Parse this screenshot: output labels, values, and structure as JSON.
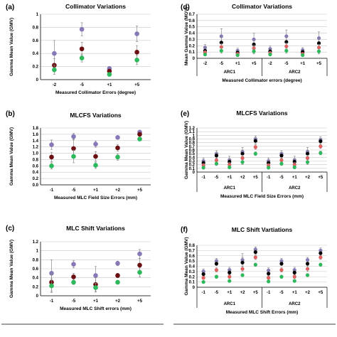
{
  "colors": {
    "purple": "#8878b8",
    "darkred": "#6b0f12",
    "green": "#2eb85c",
    "black": "#000000",
    "red": "#e06060",
    "gridline": "#c8c8c8",
    "errorbar": "#8a8a8a"
  },
  "chart_data": [
    {
      "id": "a",
      "type": "scatter",
      "panel_label": "(a)",
      "title": "Collimator Variations",
      "xlabel": "Measured Collimator Errors (degree)",
      "ylabel": "Gamma Mean Value (GMV)",
      "ylim": [
        0,
        1
      ],
      "yticks": [
        "0",
        "0.2",
        "0.4",
        "0.6",
        "0.8",
        "1"
      ],
      "categories": [
        "-2",
        "-5",
        "+1",
        "+5"
      ],
      "series": [
        {
          "color": "purple",
          "values": [
            0.4,
            0.77,
            0.17,
            0.7
          ],
          "err": [
            0.2,
            0.1,
            0.03,
            0.12
          ]
        },
        {
          "color": "darkred",
          "values": [
            0.22,
            0.47,
            0.13,
            0.42
          ],
          "err": [
            0.1,
            0.1,
            0.03,
            0.1
          ]
        },
        {
          "color": "green",
          "values": [
            0.15,
            0.33,
            0.08,
            0.3
          ],
          "err": [
            0.07,
            0.06,
            0.02,
            0.07
          ]
        }
      ]
    },
    {
      "id": "b",
      "type": "scatter",
      "panel_label": "(b)",
      "title": "MLCFS Variations",
      "xlabel": "Measured MLC Field Size Errors (mm)",
      "ylabel": "Gamma Mean Value (GMV)",
      "ylim": [
        0,
        1.8
      ],
      "yticks": [
        "0.0",
        "0.2",
        "0.4",
        "0.6",
        "0.8",
        "1.0",
        "1.2",
        "1.4",
        "1.6",
        "1.8"
      ],
      "categories": [
        "-1",
        "-5",
        "+1",
        "+2",
        "+5"
      ],
      "series": [
        {
          "color": "purple",
          "values": [
            1.27,
            1.53,
            1.29,
            1.5,
            1.67
          ],
          "err": [
            0.15,
            0.1,
            0.1,
            0.05,
            0.05
          ]
        },
        {
          "color": "darkred",
          "values": [
            0.88,
            1.15,
            0.9,
            1.17,
            1.6
          ],
          "err": [
            0.15,
            0.3,
            0.15,
            0.1,
            0.05
          ]
        },
        {
          "color": "green",
          "values": [
            0.6,
            0.9,
            0.62,
            0.88,
            1.45
          ],
          "err": [
            0.1,
            0.2,
            0.1,
            0.1,
            0.05
          ]
        }
      ]
    },
    {
      "id": "c",
      "type": "scatter",
      "panel_label": "(c)",
      "title": "MLC Shift Variations",
      "xlabel": "Measured MLC Shift errors (mm)",
      "ylabel": "Gamma Mean Value (GMV)",
      "ylim": [
        0,
        1.2
      ],
      "yticks": [
        "0",
        "0.2",
        "0.4",
        "0.6",
        "0.8",
        "1",
        "1.2"
      ],
      "categories": [
        "-1",
        "-5",
        "+1",
        "+2",
        "+5"
      ],
      "series": [
        {
          "color": "purple",
          "values": [
            0.5,
            0.7,
            0.45,
            0.72,
            0.93
          ],
          "err": [
            0.3,
            0.08,
            0.2,
            0.05,
            0.1
          ]
        },
        {
          "color": "darkred",
          "values": [
            0.3,
            0.42,
            0.25,
            0.45,
            0.68
          ],
          "err": [
            0.2,
            0.08,
            0.15,
            0.05,
            0.15
          ]
        },
        {
          "color": "green",
          "values": [
            0.22,
            0.3,
            0.18,
            0.3,
            0.52
          ],
          "err": [
            0.15,
            0.05,
            0.1,
            0.04,
            0.1
          ]
        }
      ]
    },
    {
      "id": "d",
      "type": "scatter",
      "panel_label": "(d)",
      "title": "Collimator Variations",
      "xlabel": "Measured Collimator errors (degree)",
      "ylabel": "Mean Gamma Value (MGV)",
      "ylim": [
        0,
        0.7
      ],
      "yticks": [
        "0",
        "0.1",
        "0.2",
        "0.3",
        "0.4",
        "0.5",
        "0.6",
        "0.7"
      ],
      "categories": [
        "-2",
        "-5",
        "+1",
        "+5",
        "-2",
        "-5",
        "+1",
        "+5"
      ],
      "groups": [
        {
          "label": "ARC1",
          "span": [
            0,
            3
          ]
        },
        {
          "label": "ARC2",
          "span": [
            4,
            7
          ]
        }
      ],
      "series": [
        {
          "color": "purple",
          "values": [
            0.17,
            0.35,
            0.12,
            0.3,
            0.15,
            0.35,
            0.13,
            0.32
          ],
          "err": [
            0.05,
            0.12,
            0.04,
            0.1,
            0.05,
            0.1,
            0.04,
            0.1
          ]
        },
        {
          "color": "black",
          "values": [
            0.12,
            0.25,
            0.09,
            0.22,
            0.11,
            0.26,
            0.1,
            0.24
          ],
          "err": [
            0.04,
            0.08,
            0.03,
            0.07,
            0.04,
            0.08,
            0.03,
            0.07
          ]
        },
        {
          "color": "red",
          "values": [
            0.09,
            0.18,
            0.07,
            0.16,
            0.08,
            0.19,
            0.07,
            0.17
          ],
          "err": [
            0.03,
            0.05,
            0.02,
            0.05,
            0.03,
            0.05,
            0.02,
            0.05
          ]
        },
        {
          "color": "green",
          "values": [
            0.06,
            0.12,
            0.05,
            0.11,
            0.06,
            0.12,
            0.05,
            0.11
          ],
          "err": [
            0.02,
            0.04,
            0.02,
            0.04,
            0.02,
            0.04,
            0.02,
            0.04
          ]
        }
      ]
    },
    {
      "id": "e",
      "type": "scatter",
      "panel_label": "(e)",
      "title": "MLCFS Variations",
      "xlabel": "Measured MLC Field Size Errors (mm)",
      "ylabel": "Gamma Mean Value (GMV)",
      "ylim": [
        0,
        1.2
      ],
      "yticks": [
        "0",
        "0.1",
        "0.2",
        "0.3",
        "0.4",
        "0.5",
        "0.6",
        "0.7",
        "0.8",
        "0.9",
        "1",
        "1.1",
        "1.2"
      ],
      "categories": [
        "-1",
        "-5",
        "+1",
        "+2",
        "+5",
        "-1",
        "-5",
        "+1",
        "+2",
        "+5"
      ],
      "groups": [
        {
          "label": "ARC1",
          "span": [
            0,
            4
          ]
        },
        {
          "label": "ARC2",
          "span": [
            5,
            9
          ]
        }
      ],
      "series": [
        {
          "color": "purple",
          "values": [
            0.3,
            0.5,
            0.33,
            0.55,
            0.9,
            0.3,
            0.5,
            0.33,
            0.55,
            0.88
          ],
          "err": [
            0.08,
            0.08,
            0.1,
            0.12,
            0.08,
            0.08,
            0.08,
            0.1,
            0.12,
            0.08
          ]
        },
        {
          "color": "black",
          "values": [
            0.25,
            0.45,
            0.28,
            0.5,
            0.85,
            0.25,
            0.45,
            0.28,
            0.5,
            0.84
          ],
          "err": [
            0.06,
            0.08,
            0.08,
            0.1,
            0.08,
            0.06,
            0.08,
            0.08,
            0.1,
            0.08
          ]
        },
        {
          "color": "red",
          "values": [
            0.18,
            0.32,
            0.2,
            0.38,
            0.68,
            0.18,
            0.32,
            0.2,
            0.38,
            0.7
          ],
          "err": [
            0.05,
            0.06,
            0.06,
            0.08,
            0.06,
            0.05,
            0.06,
            0.06,
            0.08,
            0.06
          ]
        },
        {
          "color": "green",
          "values": [
            0.12,
            0.23,
            0.13,
            0.27,
            0.5,
            0.12,
            0.23,
            0.13,
            0.27,
            0.52
          ],
          "err": [
            0.04,
            0.05,
            0.04,
            0.06,
            0.05,
            0.04,
            0.05,
            0.04,
            0.06,
            0.05
          ]
        }
      ]
    },
    {
      "id": "f",
      "type": "scatter",
      "panel_label": "(f)",
      "title": "MLC Shift Vartiations",
      "xlabel": "Measured MLC Shift Errors (mm)",
      "ylabel": "Gamma Mean Value (GMV)",
      "ylim": [
        0,
        0.8
      ],
      "yticks": [
        "0",
        "0.1",
        "0.2",
        "0.3",
        "0.4",
        "0.5",
        "0.6",
        "0.7",
        "0.8"
      ],
      "categories": [
        "-1",
        "-5",
        "+1",
        "+2",
        "+5",
        "-1",
        "-5",
        "+1",
        "+2",
        "+5"
      ],
      "groups": [
        {
          "label": "ARC1",
          "span": [
            0,
            4
          ]
        },
        {
          "label": "ARC2",
          "span": [
            5,
            9
          ]
        }
      ],
      "series": [
        {
          "color": "purple",
          "values": [
            0.3,
            0.5,
            0.33,
            0.52,
            0.72,
            0.32,
            0.5,
            0.33,
            0.52,
            0.7
          ],
          "err": [
            0.05,
            0.05,
            0.05,
            0.12,
            0.05,
            0.05,
            0.05,
            0.05,
            0.05,
            0.05
          ]
        },
        {
          "color": "black",
          "values": [
            0.25,
            0.45,
            0.28,
            0.47,
            0.67,
            0.26,
            0.45,
            0.28,
            0.45,
            0.65
          ],
          "err": [
            0.04,
            0.04,
            0.04,
            0.1,
            0.04,
            0.04,
            0.04,
            0.04,
            0.04,
            0.04
          ]
        },
        {
          "color": "red",
          "values": [
            0.18,
            0.33,
            0.2,
            0.35,
            0.57,
            0.18,
            0.33,
            0.2,
            0.35,
            0.57
          ],
          "err": [
            0.03,
            0.04,
            0.03,
            0.05,
            0.04,
            0.03,
            0.04,
            0.03,
            0.05,
            0.04
          ]
        },
        {
          "color": "green",
          "values": [
            0.1,
            0.2,
            0.12,
            0.23,
            0.43,
            0.11,
            0.2,
            0.12,
            0.23,
            0.43
          ],
          "err": [
            0.02,
            0.03,
            0.02,
            0.03,
            0.03,
            0.02,
            0.03,
            0.02,
            0.03,
            0.03
          ]
        }
      ]
    }
  ]
}
